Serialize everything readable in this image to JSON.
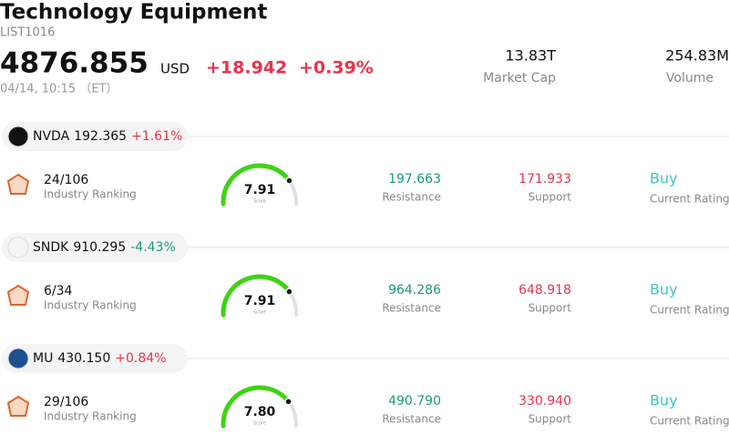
{
  "header": {
    "title": "Technology Equipment",
    "code": "LIST1016",
    "price": "4876.855",
    "currency": "USD",
    "change": "+18.942",
    "change_pct": "+0.39%",
    "time": "04/14, 10:15 （ET）",
    "market_cap": "13.83T",
    "market_cap_label": "Market Cap",
    "volume": "254.83M",
    "volume_label": "Volume",
    "change_color": "#e8334a"
  },
  "gauge_lim": [
    0,
    10
  ],
  "stocks": [
    {
      "ticker": "NVDA",
      "price": "192.365",
      "change": "+1.61%",
      "change_color": "#e8334a",
      "logo_color": "#111111",
      "ranking": "24/106",
      "ranking_label": "Industry Ranking",
      "score": {
        "value": 7.91,
        "label": "7.91"
      },
      "score_label": "Score",
      "resistance": "197.663",
      "resistance_label": "Resistance",
      "support": "171.933",
      "support_label": "Support",
      "rating": "Buy",
      "rating_label": "Current Rating"
    },
    {
      "ticker": "SNDK",
      "price": "910.295",
      "change": "-4.43%",
      "change_color": "#1a9a7e",
      "logo_color": "#f5f5f5",
      "ranking": "6/34",
      "ranking_label": "Industry Ranking",
      "score": {
        "value": 7.91,
        "label": "7.91"
      },
      "score_label": "Score",
      "resistance": "964.286",
      "resistance_label": "Resistance",
      "support": "648.918",
      "support_label": "Support",
      "rating": "Buy",
      "rating_label": "Current Rating"
    },
    {
      "ticker": "MU",
      "price": "430.150",
      "change": "+0.84%",
      "change_color": "#e8334a",
      "logo_color": "#1d4f91",
      "ranking": "29/106",
      "ranking_label": "Industry Ranking",
      "score": {
        "value": 7.8,
        "label": "7.80"
      },
      "score_label": "Score",
      "resistance": "490.790",
      "resistance_label": "Resistance",
      "support": "330.940",
      "support_label": "Support",
      "rating": "Buy",
      "rating_label": "Current Rating"
    }
  ]
}
